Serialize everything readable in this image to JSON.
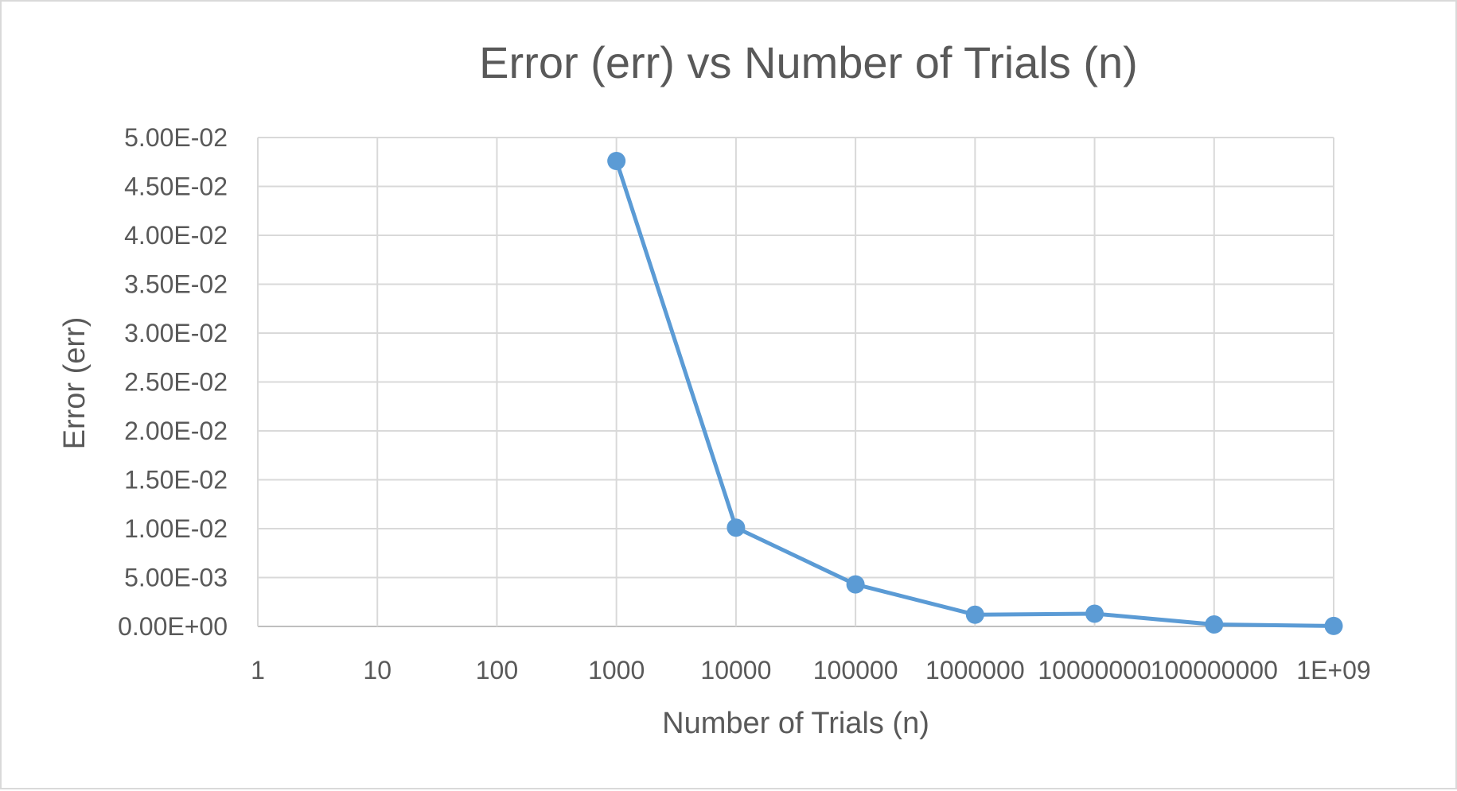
{
  "chart_data": {
    "type": "line",
    "title": "Error (err) vs Number of Trials (n)",
    "xlabel": "Number of Trials (n)",
    "ylabel": "Error (err)",
    "x_scale": "log10",
    "x_ticks": [
      1,
      10,
      100,
      1000,
      10000,
      100000,
      1000000,
      10000000,
      100000000,
      1000000000
    ],
    "x_tick_labels": [
      "1",
      "10",
      "100",
      "1000",
      "10000",
      "100000",
      "1000000",
      "10000000",
      "100000000",
      "1E+09"
    ],
    "ylim": [
      0,
      0.05
    ],
    "y_ticks": [
      0,
      0.005,
      0.01,
      0.015,
      0.02,
      0.025,
      0.03,
      0.035,
      0.04,
      0.045,
      0.05
    ],
    "y_tick_labels": [
      "0.00E+00",
      "5.00E-03",
      "1.00E-02",
      "1.50E-02",
      "2.00E-02",
      "2.50E-02",
      "3.00E-02",
      "3.50E-02",
      "4.00E-02",
      "4.50E-02",
      "5.00E-02"
    ],
    "grid": true,
    "legend": "none",
    "series": [
      {
        "color": "#5b9bd5",
        "x": [
          1000,
          10000,
          100000,
          1000000,
          10000000,
          100000000,
          1000000000
        ],
        "y": [
          0.0476,
          0.0101,
          0.0043,
          0.0012,
          0.0013,
          0.0002,
          5e-05
        ]
      }
    ]
  }
}
